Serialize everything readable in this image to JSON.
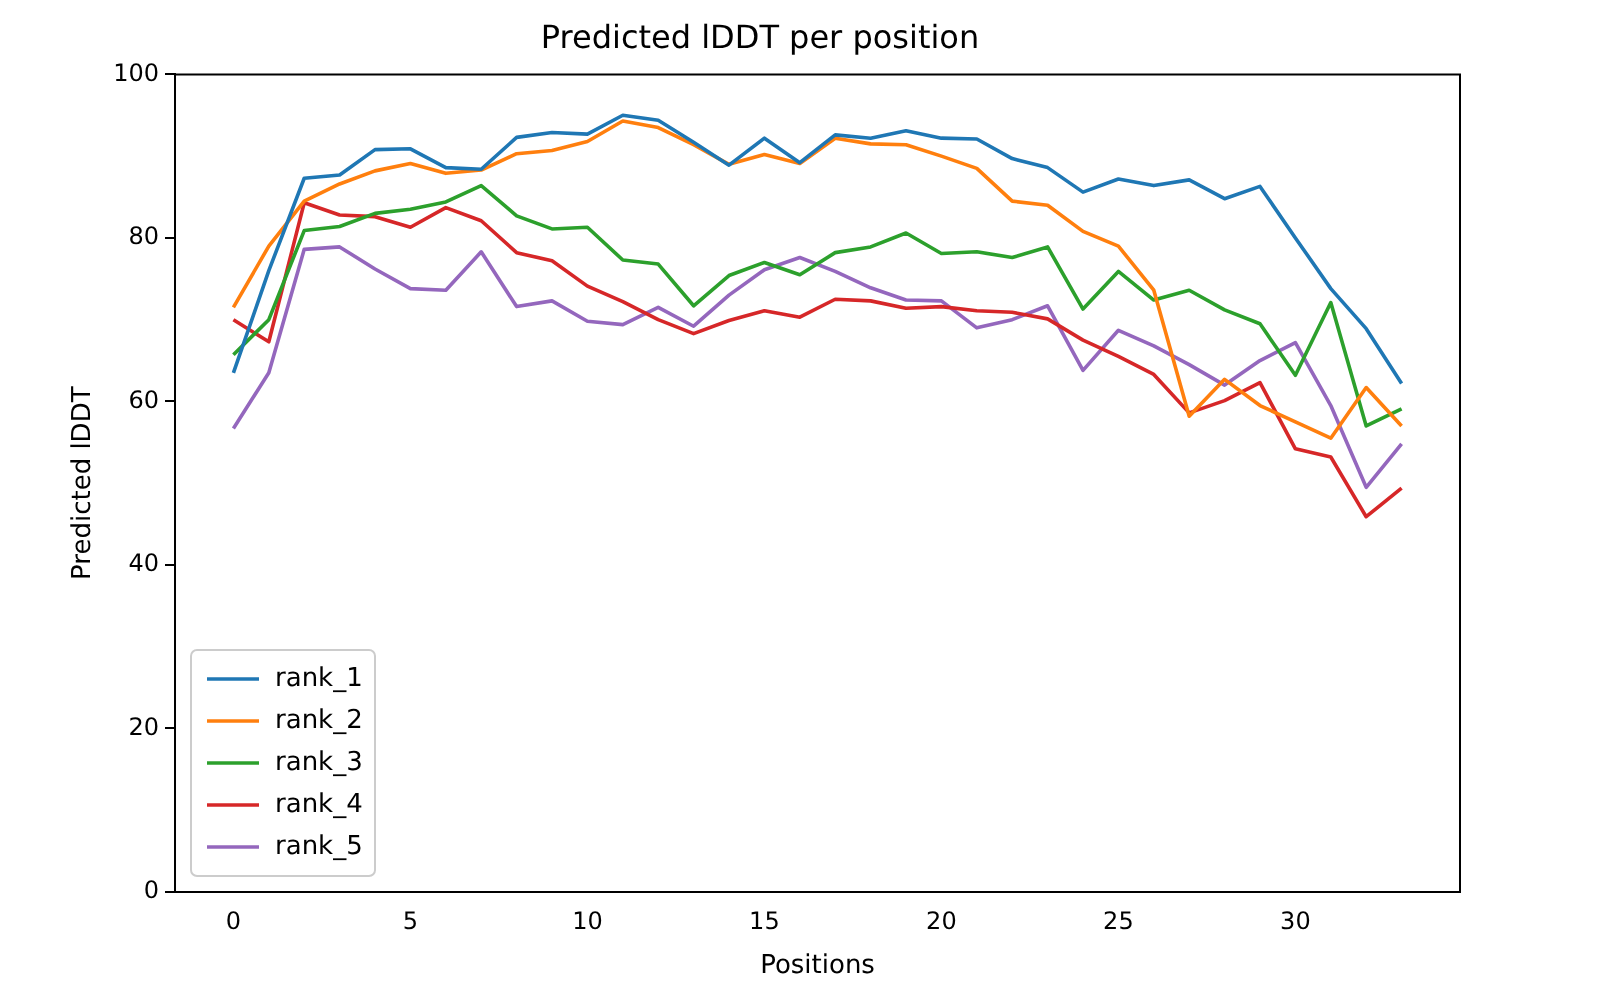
{
  "chart_data": {
    "type": "line",
    "title": "Predicted lDDT per position",
    "xlabel": "Positions",
    "ylabel": "Predicted lDDT",
    "x": [
      0,
      1,
      2,
      3,
      4,
      5,
      6,
      7,
      8,
      9,
      10,
      11,
      12,
      13,
      14,
      15,
      16,
      17,
      18,
      19,
      20,
      21,
      22,
      23,
      24,
      25,
      26,
      27,
      28,
      29,
      30,
      31,
      32,
      33
    ],
    "xlim": [
      -1.65,
      34.65
    ],
    "xticks": [
      0,
      5,
      10,
      15,
      20,
      25,
      30
    ],
    "ylim": [
      0,
      100
    ],
    "yticks": [
      0,
      20,
      40,
      60,
      80,
      100
    ],
    "grid": false,
    "legend": "bottom left",
    "marker": "none",
    "line_style": "solid",
    "series": [
      {
        "name": "rank_1",
        "color": "#1f77b4",
        "values": [
          63.5,
          76,
          87.3,
          87.7,
          90.8,
          90.9,
          88.6,
          88.4,
          92.3,
          92.9,
          92.7,
          95.0,
          94.4,
          91.7,
          88.9,
          92.2,
          89.2,
          92.6,
          92.2,
          93.1,
          92.2,
          92.1,
          89.7,
          88.6,
          85.6,
          87.2,
          86.4,
          87.1,
          84.8,
          86.3,
          80,
          73.8,
          68.9,
          62.2
        ]
      },
      {
        "name": "rank_2",
        "color": "#ff7f0e",
        "values": [
          71.5,
          79,
          84.5,
          86.6,
          88.2,
          89.1,
          87.9,
          88.3,
          90.3,
          90.7,
          91.8,
          94.3,
          93.5,
          91.4,
          89.0,
          90.2,
          89.1,
          92.2,
          91.5,
          91.4,
          90.0,
          88.5,
          84.5,
          84.0,
          80.8,
          79.0,
          73.6,
          58.2,
          62.7,
          59.5,
          57.5,
          55.5,
          61.7,
          57.0
        ]
      },
      {
        "name": "rank_3",
        "color": "#2ca02c",
        "values": [
          65.7,
          70,
          80.9,
          81.4,
          83.0,
          83.5,
          84.4,
          86.4,
          82.7,
          81.1,
          81.3,
          77.3,
          76.8,
          71.7,
          75.4,
          77.0,
          75.5,
          78.2,
          78.9,
          80.6,
          78.1,
          78.3,
          77.6,
          78.9,
          71.3,
          75.9,
          72.4,
          73.6,
          71.2,
          69.5,
          63.2,
          72.1,
          57.0,
          59.1
        ]
      },
      {
        "name": "rank_4",
        "color": "#d62728",
        "values": [
          70,
          67.3,
          84.3,
          82.8,
          82.6,
          81.3,
          83.7,
          82.1,
          78.2,
          77.2,
          74.1,
          72.2,
          70.0,
          68.3,
          69.9,
          71.1,
          70.3,
          72.5,
          72.3,
          71.4,
          71.6,
          71.1,
          70.9,
          70.1,
          67.5,
          65.5,
          63.3,
          58.6,
          60.1,
          62.3,
          54.2,
          53.2,
          45.9,
          49.4
        ]
      },
      {
        "name": "rank_5",
        "color": "#9467bd",
        "values": [
          56.7,
          63.5,
          78.6,
          78.9,
          76.2,
          73.8,
          73.6,
          78.3,
          71.6,
          72.3,
          69.8,
          69.4,
          71.5,
          69.2,
          73.0,
          76.1,
          77.6,
          75.9,
          73.9,
          72.4,
          72.3,
          69.0,
          70.0,
          71.7,
          63.8,
          68.7,
          66.8,
          64.5,
          62.0,
          65.0,
          67.2,
          59.5,
          49.5,
          54.8
        ]
      }
    ]
  }
}
